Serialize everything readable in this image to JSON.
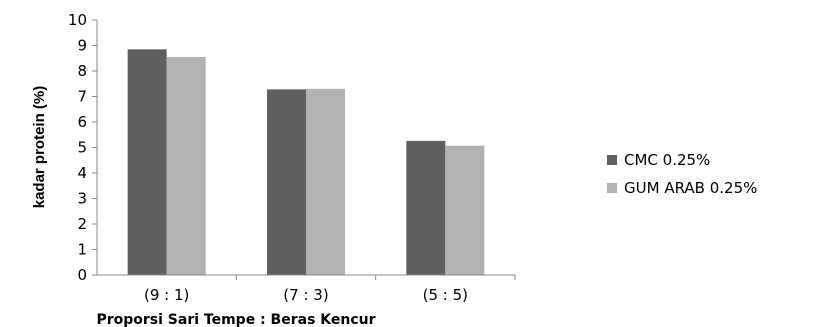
{
  "chart_data": {
    "type": "bar",
    "categories": [
      "(9 : 1)",
      "(7 : 3)",
      "(5 : 5)"
    ],
    "series": [
      {
        "name": "CMC 0.25%",
        "values": [
          8.85,
          7.28,
          5.26
        ],
        "color": "#5f5f5f"
      },
      {
        "name": "GUM ARAB 0.25%",
        "values": [
          8.55,
          7.3,
          5.07
        ],
        "color": "#b2b2b2"
      }
    ],
    "xlabel": "Proporsi Sari Tempe : Beras Kencur",
    "ylabel": "kadar protein (%)",
    "ylim": [
      0,
      10
    ],
    "yticks": [
      "0",
      "1",
      "2",
      "3",
      "4",
      "5",
      "6",
      "7",
      "8",
      "9",
      "10"
    ],
    "grid": false,
    "legend_position": "right"
  }
}
